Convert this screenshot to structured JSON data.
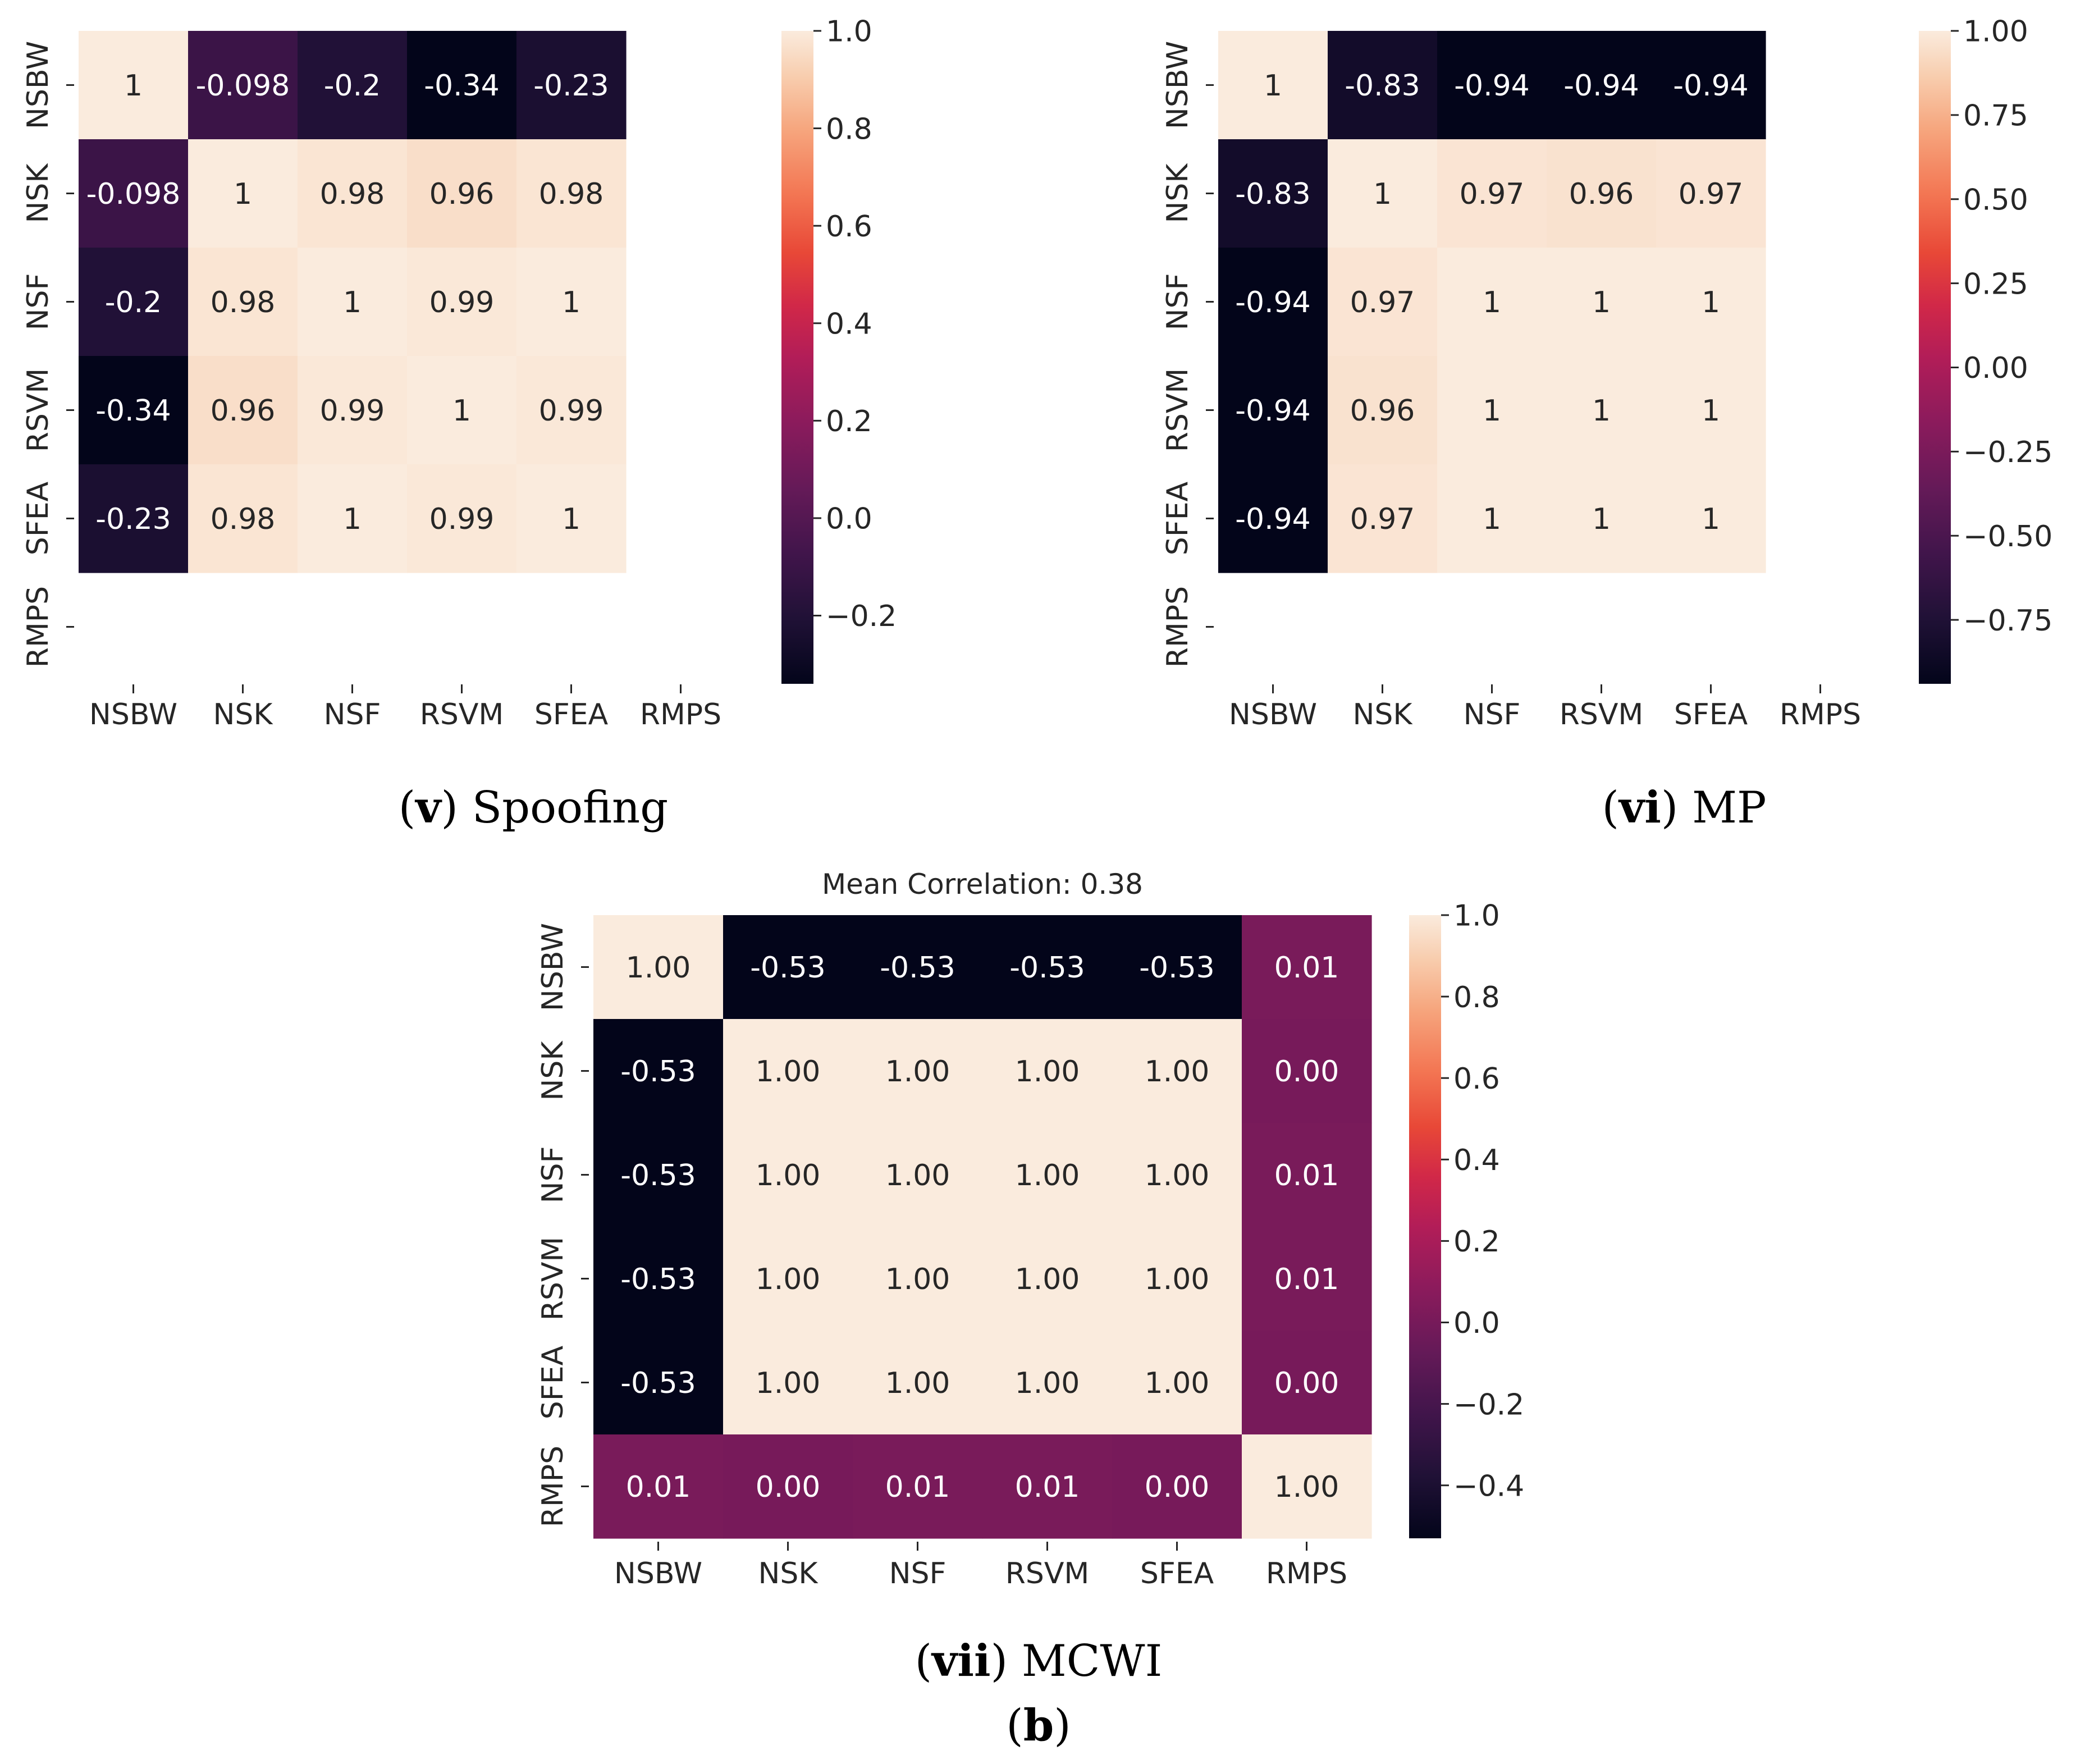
{
  "figure_label": "(b)",
  "figure_label_parts": {
    "open": "(",
    "bold": "b",
    "close": ")"
  },
  "chart_data": [
    {
      "type": "heatmap",
      "id": "spoofing",
      "caption": {
        "bold": "v",
        "text": "Spoofing"
      },
      "title": "",
      "x_labels": [
        "NSBW",
        "NSK",
        "NSF",
        "RSVM",
        "SFEA",
        "RMPS"
      ],
      "y_labels": [
        "NSBW",
        "NSK",
        "NSF",
        "RSVM",
        "SFEA",
        "RMPS"
      ],
      "values": [
        [
          1,
          -0.098,
          -0.2,
          -0.34,
          -0.23,
          null
        ],
        [
          -0.098,
          1,
          0.98,
          0.96,
          0.98,
          null
        ],
        [
          -0.2,
          0.98,
          1,
          0.99,
          1,
          null
        ],
        [
          -0.34,
          0.96,
          0.99,
          1,
          0.99,
          null
        ],
        [
          -0.23,
          0.98,
          1,
          0.99,
          1,
          null
        ],
        [
          null,
          null,
          null,
          null,
          null,
          null
        ]
      ],
      "annotations": [
        [
          "1",
          "-0.098",
          "-0.2",
          "-0.34",
          "-0.23",
          ""
        ],
        [
          "-0.098",
          "1",
          "0.98",
          "0.96",
          "0.98",
          ""
        ],
        [
          "-0.2",
          "0.98",
          "1",
          "0.99",
          "1",
          ""
        ],
        [
          "-0.34",
          "0.96",
          "0.99",
          "1",
          "0.99",
          ""
        ],
        [
          "-0.23",
          "0.98",
          "1",
          "0.99",
          "1",
          ""
        ],
        [
          "",
          "",
          "",
          "",
          "",
          ""
        ]
      ],
      "vmin": -0.34,
      "vmax": 1.0,
      "colorbar_ticks": [
        1.0,
        0.8,
        0.6,
        0.4,
        0.2,
        0.0,
        -0.2
      ],
      "colorbar_tick_labels": [
        "1.0",
        "0.8",
        "0.6",
        "0.4",
        "0.2",
        "0.0",
        "−0.2"
      ],
      "colormap": "rocket"
    },
    {
      "type": "heatmap",
      "id": "mp",
      "caption": {
        "bold": "vi",
        "text": "MP"
      },
      "title": "",
      "x_labels": [
        "NSBW",
        "NSK",
        "NSF",
        "RSVM",
        "SFEA",
        "RMPS"
      ],
      "y_labels": [
        "NSBW",
        "NSK",
        "NSF",
        "RSVM",
        "SFEA",
        "RMPS"
      ],
      "values": [
        [
          1,
          -0.83,
          -0.94,
          -0.94,
          -0.94,
          null
        ],
        [
          -0.83,
          1,
          0.97,
          0.96,
          0.97,
          null
        ],
        [
          -0.94,
          0.97,
          1,
          1,
          1,
          null
        ],
        [
          -0.94,
          0.96,
          1,
          1,
          1,
          null
        ],
        [
          -0.94,
          0.97,
          1,
          1,
          1,
          null
        ],
        [
          null,
          null,
          null,
          null,
          null,
          null
        ]
      ],
      "annotations": [
        [
          "1",
          "-0.83",
          "-0.94",
          "-0.94",
          "-0.94",
          ""
        ],
        [
          "-0.83",
          "1",
          "0.97",
          "0.96",
          "0.97",
          ""
        ],
        [
          "-0.94",
          "0.97",
          "1",
          "1",
          "1",
          ""
        ],
        [
          "-0.94",
          "0.96",
          "1",
          "1",
          "1",
          ""
        ],
        [
          "-0.94",
          "0.97",
          "1",
          "1",
          "1",
          ""
        ],
        [
          "",
          "",
          "",
          "",
          "",
          ""
        ]
      ],
      "vmin": -0.94,
      "vmax": 1.0,
      "colorbar_ticks": [
        1.0,
        0.75,
        0.5,
        0.25,
        0.0,
        -0.25,
        -0.5,
        -0.75
      ],
      "colorbar_tick_labels": [
        "1.00",
        "0.75",
        "0.50",
        "0.25",
        "0.00",
        "−0.25",
        "−0.50",
        "−0.75"
      ],
      "colormap": "rocket"
    },
    {
      "type": "heatmap",
      "id": "mcwi",
      "caption": {
        "bold": "vii",
        "text": "MCWI"
      },
      "title": "Mean Correlation: 0.38",
      "x_labels": [
        "NSBW",
        "NSK",
        "NSF",
        "RSVM",
        "SFEA",
        "RMPS"
      ],
      "y_labels": [
        "NSBW",
        "NSK",
        "NSF",
        "RSVM",
        "SFEA",
        "RMPS"
      ],
      "values": [
        [
          1.0,
          -0.53,
          -0.53,
          -0.53,
          -0.53,
          0.01
        ],
        [
          -0.53,
          1.0,
          1.0,
          1.0,
          1.0,
          0.0
        ],
        [
          -0.53,
          1.0,
          1.0,
          1.0,
          1.0,
          0.01
        ],
        [
          -0.53,
          1.0,
          1.0,
          1.0,
          1.0,
          0.01
        ],
        [
          -0.53,
          1.0,
          1.0,
          1.0,
          1.0,
          0.0
        ],
        [
          0.01,
          0.0,
          0.01,
          0.01,
          0.0,
          1.0
        ]
      ],
      "annotations": [
        [
          "1.00",
          "-0.53",
          "-0.53",
          "-0.53",
          "-0.53",
          "0.01"
        ],
        [
          "-0.53",
          "1.00",
          "1.00",
          "1.00",
          "1.00",
          "0.00"
        ],
        [
          "-0.53",
          "1.00",
          "1.00",
          "1.00",
          "1.00",
          "0.01"
        ],
        [
          "-0.53",
          "1.00",
          "1.00",
          "1.00",
          "1.00",
          "0.01"
        ],
        [
          "-0.53",
          "1.00",
          "1.00",
          "1.00",
          "1.00",
          "0.00"
        ],
        [
          "0.01",
          "0.00",
          "0.01",
          "0.01",
          "0.00",
          "1.00"
        ]
      ],
      "vmin": -0.53,
      "vmax": 1.0,
      "colorbar_ticks": [
        1.0,
        0.8,
        0.6,
        0.4,
        0.2,
        0.0,
        -0.2,
        -0.4
      ],
      "colorbar_tick_labels": [
        "1.0",
        "0.8",
        "0.6",
        "0.4",
        "0.2",
        "0.0",
        "−0.2",
        "−0.4"
      ],
      "colormap": "rocket"
    }
  ]
}
